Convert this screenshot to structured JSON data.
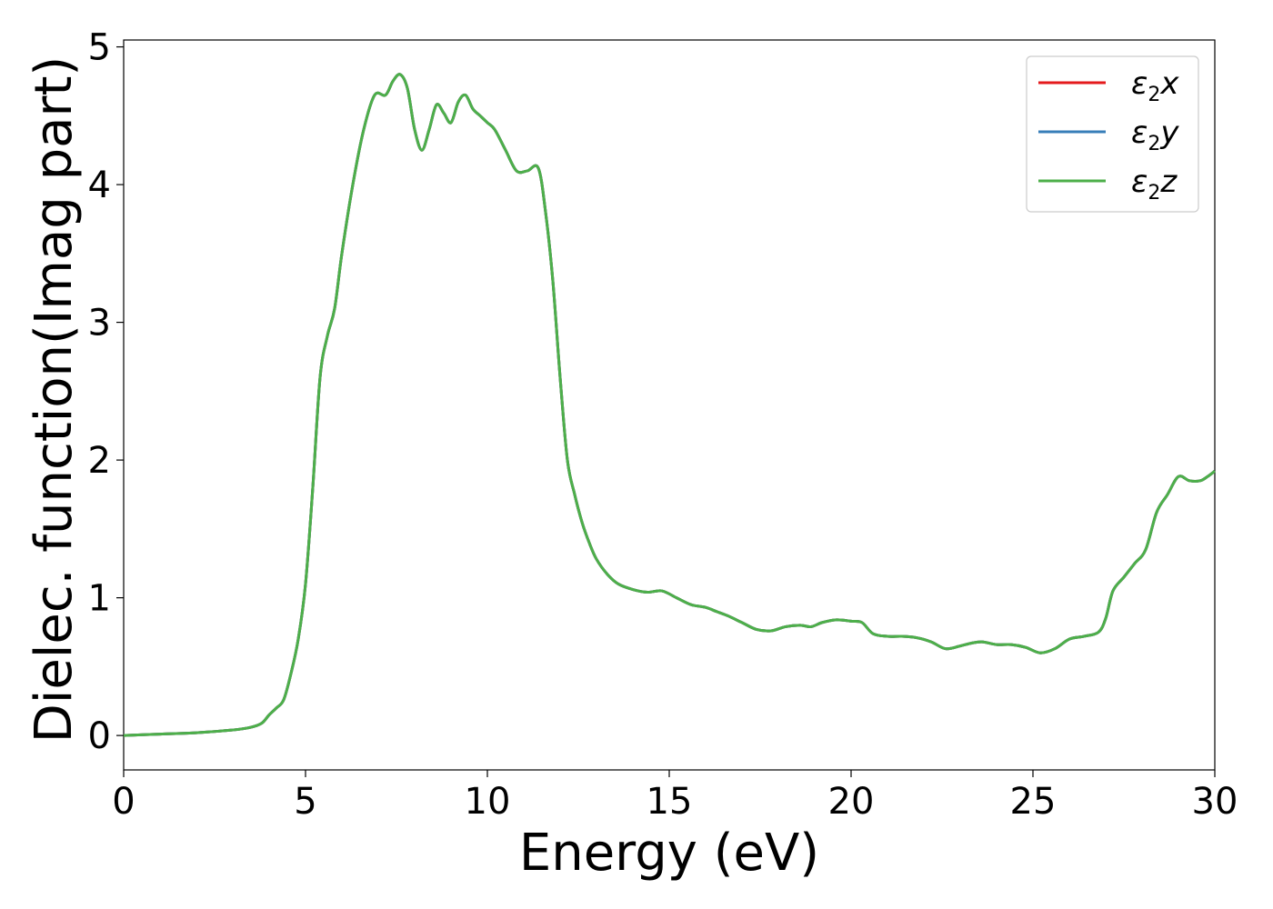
{
  "chart_data": {
    "type": "line",
    "title": "",
    "xlabel": "Energy (eV)",
    "ylabel": "Dielec. function(Imag part)",
    "xlim": [
      0,
      30
    ],
    "ylim": [
      -0.25,
      5.05
    ],
    "x_ticks": [
      0,
      5,
      10,
      15,
      20,
      25,
      30
    ],
    "y_ticks": [
      0,
      1,
      2,
      3,
      4,
      5
    ],
    "x_tick_labels": [
      "0",
      "5",
      "10",
      "15",
      "20",
      "25",
      "30"
    ],
    "y_tick_labels": [
      "0",
      "1",
      "2",
      "3",
      "4",
      "5"
    ],
    "grid": false,
    "legend_position": "top-right",
    "series": [
      {
        "name": "ε2x",
        "legend_main": "ε",
        "legend_sub": "2",
        "legend_var": "x",
        "color": "#e41a1c"
      },
      {
        "name": "ε2y",
        "legend_main": "ε",
        "legend_sub": "2",
        "legend_var": "y",
        "color": "#377eb8"
      },
      {
        "name": "ε2z",
        "legend_main": "ε",
        "legend_sub": "2",
        "legend_var": "z",
        "color": "#4daf4a"
      }
    ],
    "x": [
      0,
      1,
      2,
      3,
      3.5,
      3.8,
      4.0,
      4.2,
      4.4,
      4.6,
      4.8,
      5.0,
      5.2,
      5.4,
      5.6,
      5.8,
      6.0,
      6.3,
      6.6,
      6.9,
      7.2,
      7.4,
      7.6,
      7.8,
      8.0,
      8.2,
      8.4,
      8.6,
      8.8,
      9.0,
      9.2,
      9.4,
      9.6,
      9.8,
      10.0,
      10.2,
      10.5,
      10.8,
      11.1,
      11.4,
      11.6,
      11.8,
      12.0,
      12.2,
      12.4,
      12.6,
      12.8,
      13.0,
      13.3,
      13.6,
      14.0,
      14.4,
      14.8,
      15.2,
      15.6,
      16.0,
      16.3,
      16.6,
      17.0,
      17.4,
      17.8,
      18.2,
      18.6,
      18.9,
      19.2,
      19.6,
      20.0,
      20.3,
      20.6,
      21.0,
      21.4,
      21.8,
      22.2,
      22.6,
      23.0,
      23.3,
      23.6,
      24.0,
      24.4,
      24.8,
      25.2,
      25.6,
      26.0,
      26.4,
      26.8,
      27.0,
      27.2,
      27.5,
      27.8,
      28.1,
      28.4,
      28.7,
      29.0,
      29.3,
      29.6,
      29.8,
      30.0
    ],
    "values": [
      0.0,
      0.01,
      0.02,
      0.04,
      0.06,
      0.09,
      0.15,
      0.2,
      0.26,
      0.45,
      0.7,
      1.1,
      1.8,
      2.6,
      2.9,
      3.1,
      3.5,
      4.0,
      4.4,
      4.65,
      4.65,
      4.75,
      4.8,
      4.7,
      4.4,
      4.25,
      4.4,
      4.58,
      4.52,
      4.45,
      4.6,
      4.65,
      4.55,
      4.5,
      4.45,
      4.4,
      4.25,
      4.1,
      4.1,
      4.12,
      3.8,
      3.3,
      2.6,
      2.0,
      1.75,
      1.55,
      1.4,
      1.28,
      1.17,
      1.1,
      1.06,
      1.04,
      1.05,
      1.0,
      0.95,
      0.93,
      0.9,
      0.87,
      0.82,
      0.77,
      0.76,
      0.79,
      0.8,
      0.79,
      0.82,
      0.84,
      0.83,
      0.82,
      0.74,
      0.72,
      0.72,
      0.71,
      0.68,
      0.63,
      0.65,
      0.67,
      0.68,
      0.66,
      0.66,
      0.64,
      0.6,
      0.63,
      0.7,
      0.72,
      0.75,
      0.85,
      1.05,
      1.15,
      1.25,
      1.35,
      1.62,
      1.75,
      1.88,
      1.85,
      1.85,
      1.88,
      1.92
    ]
  }
}
